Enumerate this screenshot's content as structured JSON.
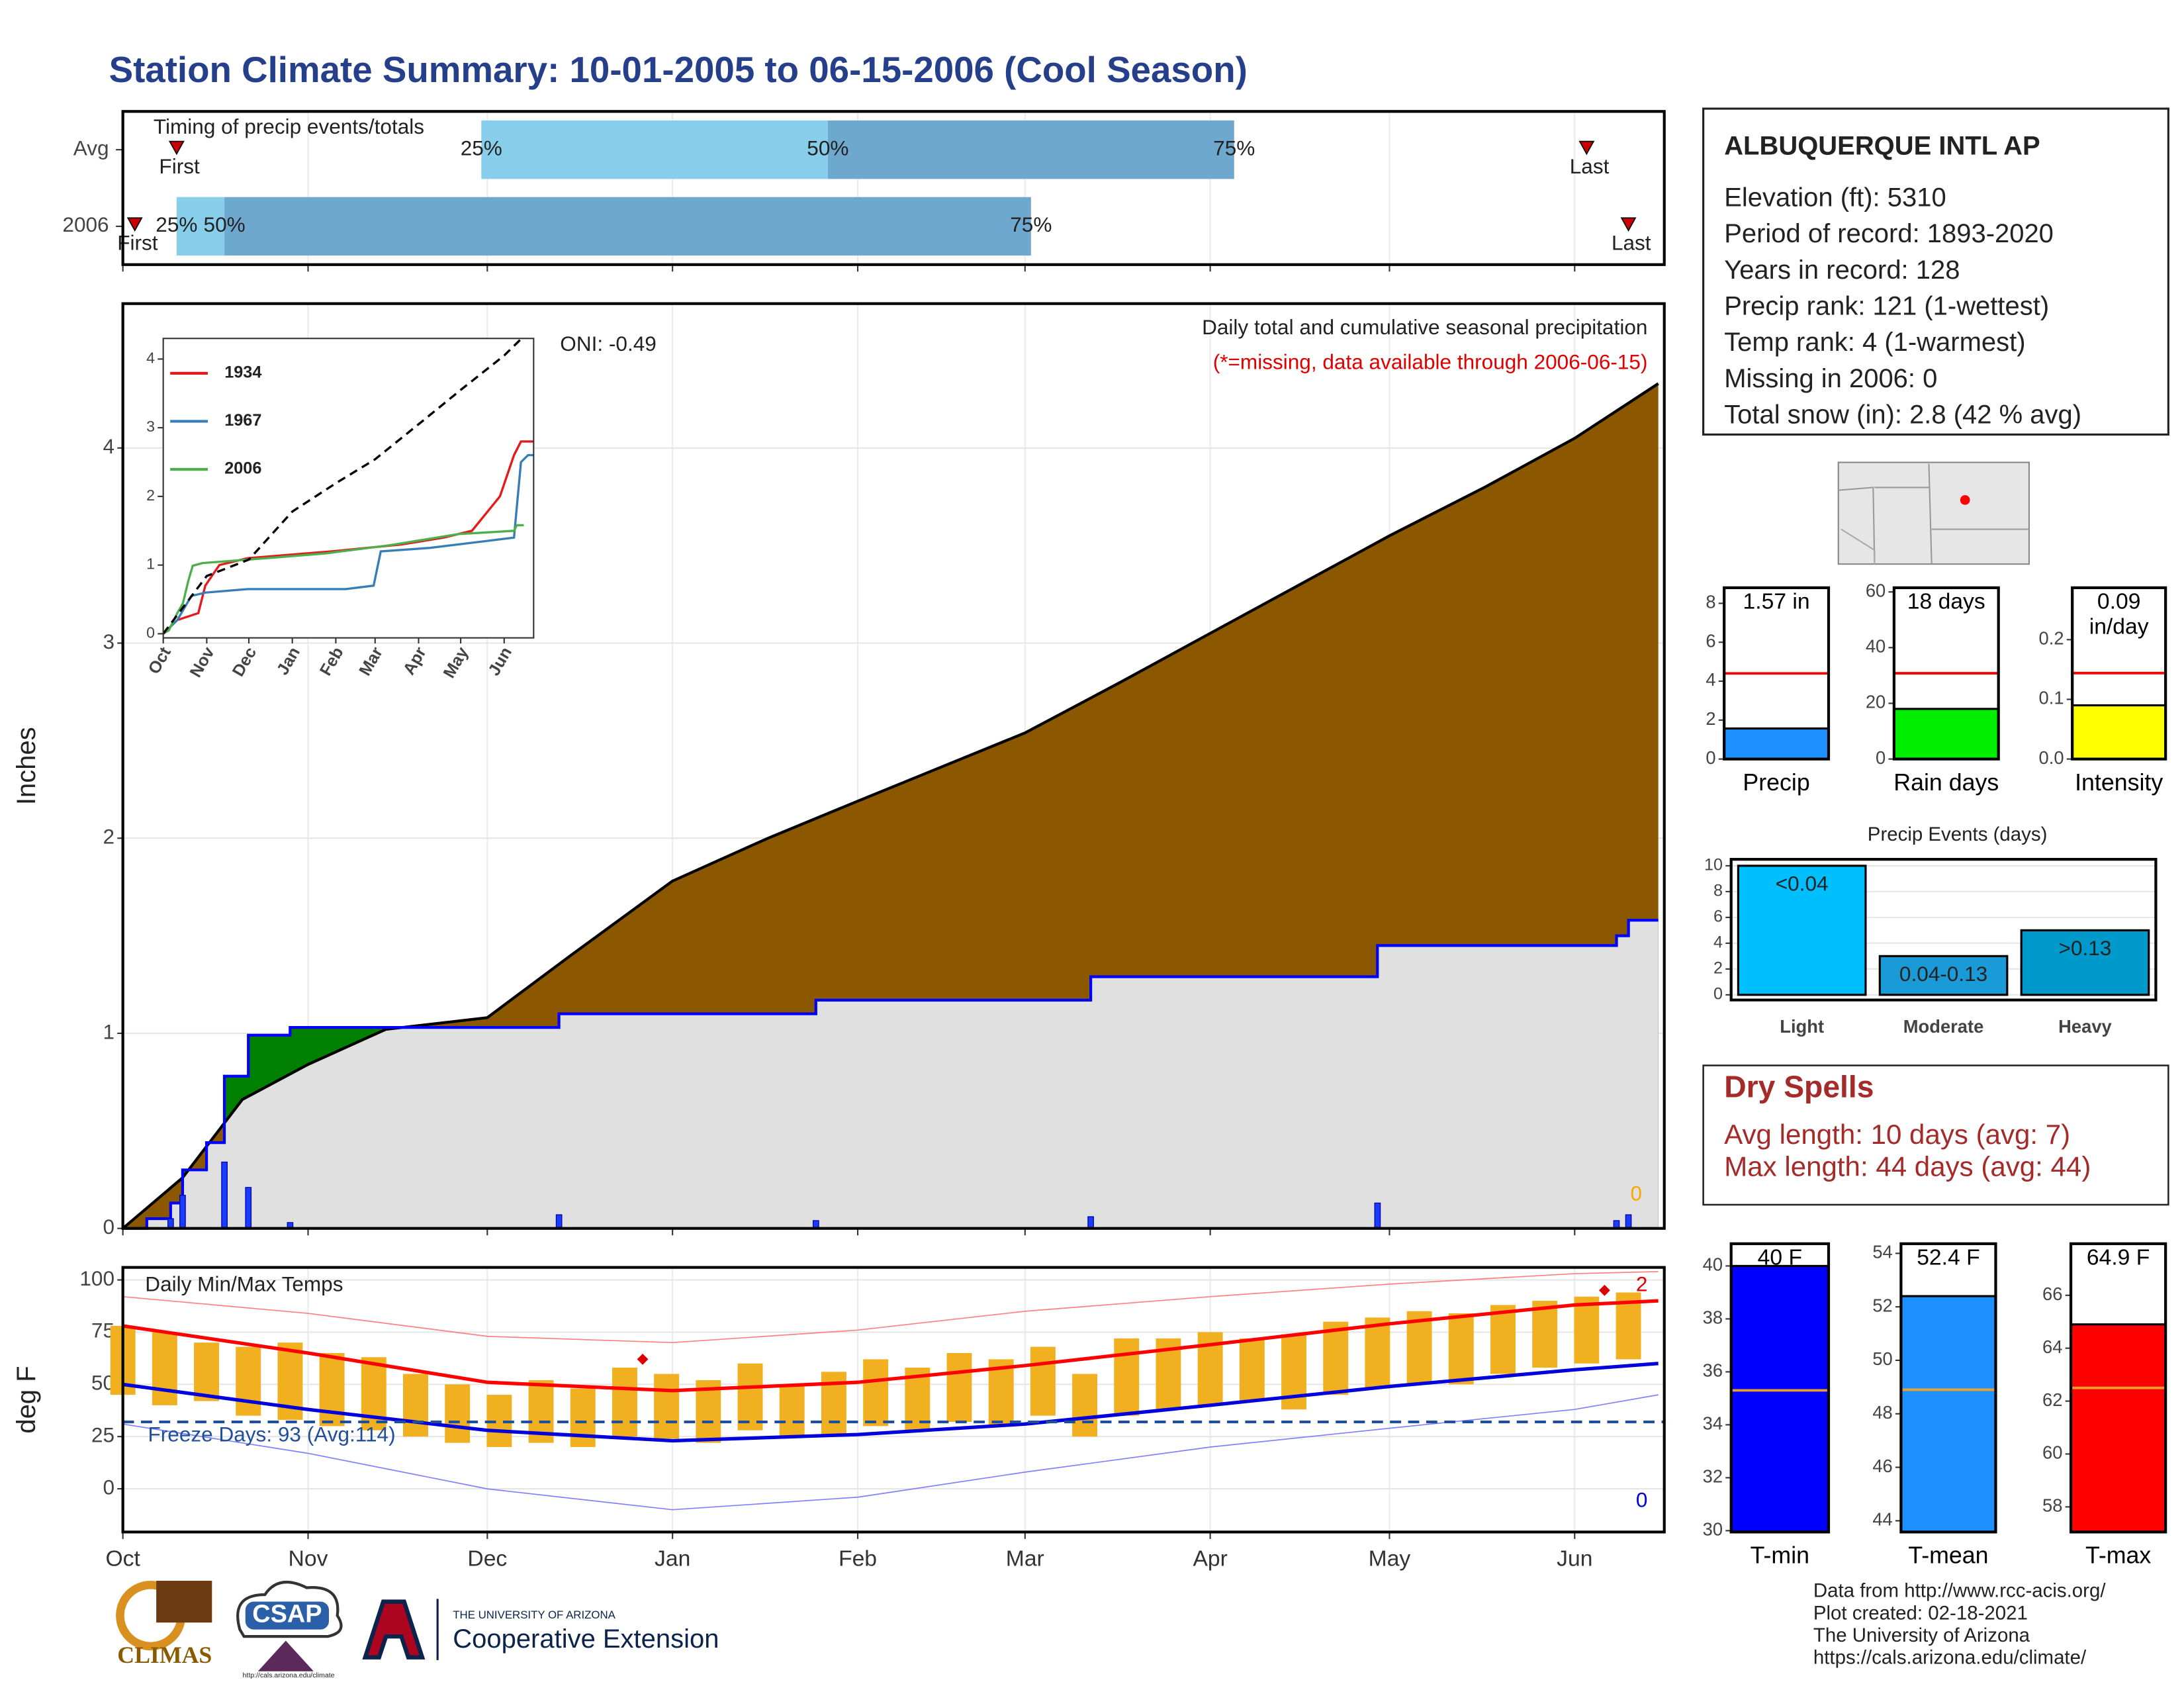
{
  "title": "Station Climate Summary: 10-01-2005 to 06-15-2006 (Cool Season)",
  "station": {
    "name": "ALBUQUERQUE INTL AP",
    "lines": [
      "Elevation (ft): 5310",
      "Period of record: 1893-2020",
      "Years in record: 128",
      "Precip rank: 121 (1-wettest)",
      "Temp rank: 4 (1-warmest)",
      "Missing in 2006: 0",
      "Total snow (in): 2.8 (42 % avg)"
    ]
  },
  "dry_spells": {
    "title": "Dry Spells",
    "lines": [
      "Avg length: 10 days (avg: 7)",
      "Max length: 44 days (avg: 44)"
    ]
  },
  "footer": [
    "Data from http://www.rcc-acis.org/",
    "Plot created: 02-18-2021",
    "The University of Arizona",
    "https://cals.arizona.edu/climate/"
  ],
  "logos": {
    "climas": "CLIMAS",
    "csap": "CSAP",
    "csap_url": "http://cals.arizona.edu/climate",
    "university": "THE UNIVERSITY OF ARIZONA",
    "extension": "Cooperative Extension"
  },
  "chart_data": [
    {
      "type": "timeline",
      "title": "Timing of precip events/totals",
      "categories": [
        "Avg",
        "2006"
      ],
      "xlim": [
        0,
        258
      ],
      "series": [
        {
          "name": "First",
          "color": "#cc0000",
          "values": [
            9,
            2
          ]
        },
        {
          "name": "25%",
          "color": "#87ceeb",
          "values": [
            60,
            9
          ]
        },
        {
          "name": "50%",
          "color": "#6fa8cf",
          "values": [
            118,
            17
          ]
        },
        {
          "name": "75%",
          "values": [
            186,
            152
          ]
        },
        {
          "name": "Last",
          "color": "#cc0000",
          "values": [
            245,
            252
          ]
        }
      ]
    },
    {
      "type": "area",
      "ylabel": "Inches",
      "oni": "ONI: -0.49",
      "subtitle": "Daily total and cumulative seasonal precipitation",
      "note": "(*=missing, data available through 2006-06-15)",
      "right_label": "0",
      "xlim": [
        0,
        258
      ],
      "ylim": [
        0,
        4.74
      ],
      "yticks": [
        0,
        1,
        2,
        3,
        4
      ],
      "grid": true,
      "above_color": "#008000",
      "series": [
        {
          "color": "#8b5800",
          "x": [
            0,
            10,
            20,
            31,
            44,
            61,
            75,
            92,
            108,
            123,
            151,
            167,
            182,
            197,
            212,
            228,
            243,
            257
          ],
          "values": [
            0,
            0.26,
            0.66,
            0.84,
            1.02,
            1.08,
            1.4,
            1.78,
            2.0,
            2.19,
            2.54,
            2.8,
            3.05,
            3.3,
            3.55,
            3.8,
            4.05,
            4.33
          ]
        },
        {
          "color": "#0000ff",
          "fill": "#e0e0e0",
          "x": [
            0,
            4,
            4,
            8,
            8,
            10,
            10,
            14,
            14,
            17,
            17,
            21,
            21,
            28,
            28,
            73,
            73,
            116,
            116,
            162,
            162,
            210,
            210,
            250,
            250,
            252,
            252,
            257
          ],
          "values": [
            0,
            0,
            0.05,
            0.05,
            0.13,
            0.13,
            0.3,
            0.3,
            0.44,
            0.44,
            0.78,
            0.78,
            0.99,
            0.99,
            1.03,
            1.03,
            1.1,
            1.1,
            1.17,
            1.17,
            1.29,
            1.29,
            1.45,
            1.45,
            1.5,
            1.5,
            1.58,
            1.58
          ]
        }
      ],
      "bars": {
        "color": "#1a3cff",
        "x": [
          8,
          10,
          17,
          21,
          28,
          73,
          116,
          162,
          210,
          250,
          252
        ],
        "values": [
          0.05,
          0.17,
          0.34,
          0.21,
          0.03,
          0.07,
          0.04,
          0.06,
          0.13,
          0.04,
          0.07
        ]
      }
    },
    {
      "type": "line",
      "xlim": [
        0,
        264
      ],
      "ylim": [
        -0.06,
        4.3
      ],
      "yticks": [
        0,
        1,
        2,
        3,
        4
      ],
      "xticks": [
        {
          "value": 0,
          "label": "Oct"
        },
        {
          "value": 31,
          "label": "Nov"
        },
        {
          "value": 61,
          "label": "Dec"
        },
        {
          "value": 92,
          "label": "Jan"
        },
        {
          "value": 123,
          "label": "Feb"
        },
        {
          "value": 151,
          "label": "Mar"
        },
        {
          "value": 182,
          "label": "Apr"
        },
        {
          "value": 212,
          "label": "May"
        },
        {
          "value": 243,
          "label": "Jun"
        }
      ],
      "series": [
        {
          "name": "1934",
          "color": "#e41a1c",
          "x": [
            0,
            10,
            25,
            30,
            40,
            60,
            90,
            120,
            170,
            200,
            220,
            240,
            250,
            255,
            264
          ],
          "values": [
            0,
            0.2,
            0.3,
            0.7,
            1.0,
            1.1,
            1.15,
            1.2,
            1.3,
            1.4,
            1.5,
            2.0,
            2.6,
            2.8,
            2.8
          ]
        },
        {
          "name": "1967",
          "color": "#377eb8",
          "x": [
            0,
            10,
            20,
            30,
            60,
            130,
            150,
            155,
            190,
            230,
            250,
            255,
            260,
            264
          ],
          "values": [
            0,
            0.2,
            0.55,
            0.6,
            0.65,
            0.65,
            0.7,
            1.2,
            1.25,
            1.35,
            1.4,
            2.5,
            2.6,
            2.6
          ]
        },
        {
          "name": "2006",
          "color": "#4daf4a",
          "x": [
            0,
            4,
            10,
            14,
            18,
            21,
            28,
            73,
            116,
            162,
            210,
            250,
            252,
            257
          ],
          "values": [
            0,
            0.05,
            0.3,
            0.44,
            0.78,
            0.99,
            1.03,
            1.1,
            1.17,
            1.29,
            1.45,
            1.5,
            1.58,
            1.58
          ]
        },
        {
          "color": "#000000",
          "dash": true,
          "x": [
            0,
            31,
            61,
            92,
            123,
            151,
            182,
            212,
            243,
            257
          ],
          "values": [
            0,
            0.84,
            1.08,
            1.78,
            2.19,
            2.54,
            3.05,
            3.55,
            4.05,
            4.33
          ]
        }
      ]
    },
    {
      "type": "range",
      "title": "Daily Min/Max Temps",
      "ylabel": "deg F",
      "xlim": [
        0,
        258
      ],
      "ylim": [
        -20.7,
        106
      ],
      "yticks": [
        0,
        25,
        50,
        75,
        100
      ],
      "grid": true,
      "xticks": [
        {
          "value": 0,
          "label": "Oct"
        },
        {
          "value": 31,
          "label": "Nov"
        },
        {
          "value": 61,
          "label": "Dec"
        },
        {
          "value": 92,
          "label": "Jan"
        },
        {
          "value": 123,
          "label": "Feb"
        },
        {
          "value": 151,
          "label": "Mar"
        },
        {
          "value": 182,
          "label": "Apr"
        },
        {
          "value": 212,
          "label": "May"
        },
        {
          "value": 243,
          "label": "Jun"
        }
      ],
      "bars": {
        "color": "#f0b020",
        "x": [
          0,
          7,
          14,
          21,
          28,
          35,
          42,
          49,
          56,
          63,
          70,
          77,
          84,
          91,
          98,
          105,
          112,
          119,
          126,
          133,
          140,
          147,
          154,
          161,
          168,
          175,
          182,
          189,
          196,
          203,
          210,
          217,
          224,
          231,
          238,
          245,
          252
        ],
        "low": [
          45,
          40,
          42,
          35,
          33,
          30,
          28,
          25,
          22,
          20,
          22,
          20,
          25,
          24,
          22,
          28,
          25,
          26,
          30,
          28,
          32,
          30,
          35,
          25,
          35,
          38,
          40,
          42,
          38,
          45,
          48,
          50,
          50,
          55,
          58,
          60,
          62
        ],
        "high": [
          78,
          75,
          70,
          68,
          70,
          65,
          63,
          55,
          50,
          45,
          52,
          48,
          58,
          55,
          52,
          60,
          50,
          56,
          62,
          58,
          65,
          62,
          68,
          55,
          72,
          72,
          75,
          72,
          74,
          80,
          82,
          85,
          84,
          88,
          90,
          92,
          94
        ]
      },
      "series": [
        {
          "color": "#ff0000",
          "width": 2.5,
          "x": [
            0,
            31,
            61,
            92,
            123,
            151,
            182,
            212,
            243,
            257
          ],
          "values": [
            78,
            65,
            51,
            47,
            51,
            59,
            69,
            79,
            88,
            90
          ]
        },
        {
          "color": "#0000dd",
          "width": 2.5,
          "x": [
            0,
            31,
            61,
            92,
            123,
            151,
            182,
            212,
            243,
            257
          ],
          "values": [
            50,
            38,
            28,
            23,
            26,
            31,
            40,
            49,
            57,
            60
          ]
        },
        {
          "color": "#ff8080",
          "width": 0.8,
          "x": [
            0,
            31,
            61,
            92,
            123,
            151,
            182,
            212,
            243,
            257
          ],
          "values": [
            92,
            84,
            73,
            70,
            76,
            85,
            92,
            98,
            103,
            104
          ]
        },
        {
          "color": "#8080ff",
          "width": 0.8,
          "x": [
            0,
            31,
            61,
            92,
            123,
            151,
            182,
            212,
            243,
            257
          ],
          "values": [
            31,
            17,
            0,
            -10,
            -4,
            8,
            20,
            29,
            38,
            45
          ]
        }
      ],
      "freeze_line": 32,
      "freeze_color": "#1f4e9a",
      "freeze_label": "Freeze Days: 93 (Avg:114)",
      "records": {
        "color": "#dd0000",
        "x": [
          87,
          248
        ],
        "values": [
          62,
          95
        ]
      },
      "high_count": "2",
      "low_count": "0"
    },
    {
      "type": "bar",
      "categories": [
        "Precip"
      ],
      "values": [
        1.57
      ],
      "value_labels": [
        "1.57 in"
      ],
      "color": "#1e90ff",
      "avg": 4.4,
      "avg_color": "#ff0000",
      "ylim": [
        0,
        8.8
      ],
      "yticks": [
        0,
        2,
        4,
        6,
        8
      ]
    },
    {
      "type": "bar",
      "categories": [
        "Rain days"
      ],
      "values": [
        18
      ],
      "value_labels": [
        "18 days"
      ],
      "color": "#00ee00",
      "avg": 30.8,
      "avg_color": "#ff0000",
      "ylim": [
        0,
        61.5
      ],
      "yticks": [
        0,
        20,
        40,
        60
      ]
    },
    {
      "type": "bar",
      "categories": [
        "Intensity"
      ],
      "values": [
        0.09
      ],
      "value_labels": [
        "0.09 in/day"
      ],
      "color": "#ffff00",
      "avg": 0.144,
      "avg_color": "#ff0000",
      "ylim": [
        0,
        0.287
      ],
      "yticks": [
        {
          "value": 0,
          "label": "0.0"
        },
        0.1,
        0.2
      ]
    },
    {
      "type": "bar",
      "title": "Precip Events (days)",
      "categories": [
        "Light",
        "Moderate",
        "Heavy"
      ],
      "values": [
        10,
        3,
        5
      ],
      "value_labels": [
        "<0.04",
        "0.04-0.13",
        ">0.13"
      ],
      "colors": [
        "#00bfff",
        "#1a9ad6",
        "#0099cc"
      ],
      "ylim": [
        -0.4,
        10.5
      ],
      "yticks": [
        0,
        2,
        4,
        6,
        8,
        10
      ],
      "grid": true
    },
    {
      "type": "bar",
      "categories": [
        "T-min"
      ],
      "values": [
        40
      ],
      "value_labels": [
        "40 F"
      ],
      "color": "#0000ff",
      "avg": 35.3,
      "avg_color": "#e8a030",
      "ylim": [
        29.95,
        40.84
      ],
      "yticks": [
        30,
        32,
        34,
        36,
        38,
        40
      ]
    },
    {
      "type": "bar",
      "categories": [
        "T-mean"
      ],
      "values": [
        52.4
      ],
      "value_labels": [
        "52.4 F"
      ],
      "color": "#1e90ff",
      "avg": 48.9,
      "avg_color": "#e8a030",
      "ylim": [
        43.58,
        54.36
      ],
      "yticks": [
        44,
        46,
        48,
        50,
        52,
        54
      ]
    },
    {
      "type": "bar",
      "categories": [
        "T-max"
      ],
      "values": [
        64.9
      ],
      "value_labels": [
        "64.9 F"
      ],
      "color": "#ff0000",
      "avg": 62.5,
      "avg_color": "#e8a030",
      "ylim": [
        57.05,
        67.95
      ],
      "yticks": [
        58,
        60,
        62,
        64,
        66
      ]
    }
  ]
}
